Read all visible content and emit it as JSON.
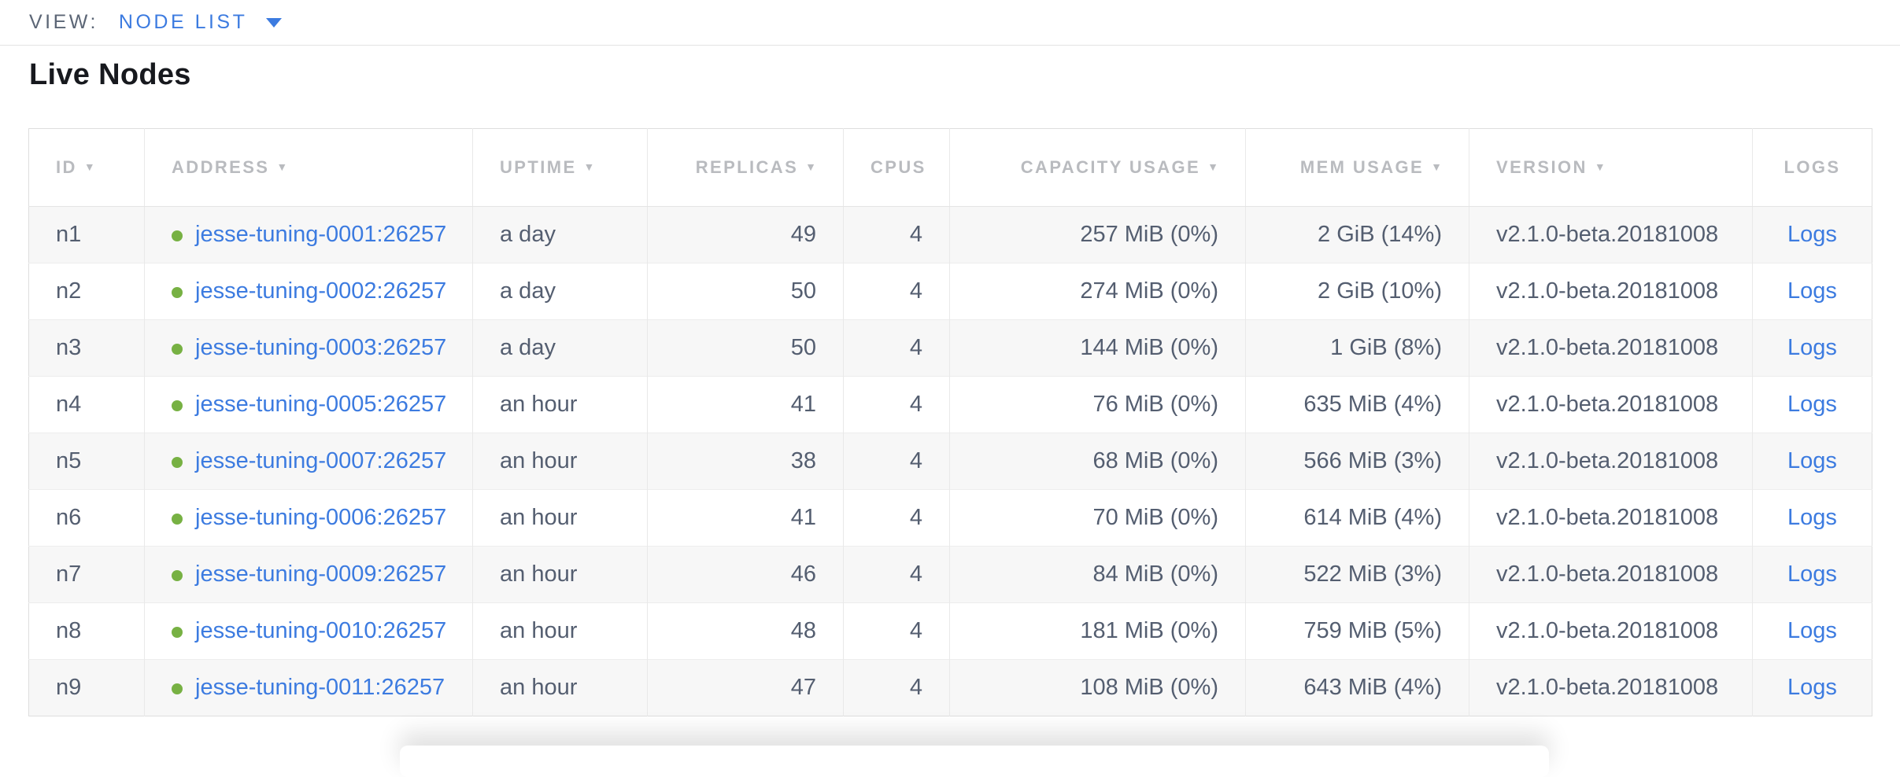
{
  "view_bar": {
    "label": "VIEW:",
    "selected": "NODE LIST"
  },
  "page": {
    "title": "Live Nodes"
  },
  "table": {
    "columns": [
      {
        "key": "id",
        "label": "ID",
        "sortable": true,
        "align": "left"
      },
      {
        "key": "address",
        "label": "ADDRESS",
        "sortable": true,
        "align": "left"
      },
      {
        "key": "uptime",
        "label": "UPTIME",
        "sortable": true,
        "align": "left"
      },
      {
        "key": "replicas",
        "label": "REPLICAS",
        "sortable": true,
        "align": "right"
      },
      {
        "key": "cpus",
        "label": "CPUS",
        "sortable": false,
        "align": "right"
      },
      {
        "key": "capacity",
        "label": "CAPACITY USAGE",
        "sortable": true,
        "align": "right"
      },
      {
        "key": "mem",
        "label": "MEM USAGE",
        "sortable": true,
        "align": "right"
      },
      {
        "key": "version",
        "label": "VERSION",
        "sortable": true,
        "align": "left"
      },
      {
        "key": "logs",
        "label": "LOGS",
        "sortable": false,
        "align": "center"
      }
    ],
    "rows": [
      {
        "id": "n1",
        "status": "live",
        "address": "jesse-tuning-0001:26257",
        "uptime": "a day",
        "replicas": "49",
        "cpus": "4",
        "capacity": "257 MiB (0%)",
        "mem": "2 GiB (14%)",
        "version": "v2.1.0-beta.20181008",
        "logs": "Logs"
      },
      {
        "id": "n2",
        "status": "live",
        "address": "jesse-tuning-0002:26257",
        "uptime": "a day",
        "replicas": "50",
        "cpus": "4",
        "capacity": "274 MiB (0%)",
        "mem": "2 GiB (10%)",
        "version": "v2.1.0-beta.20181008",
        "logs": "Logs"
      },
      {
        "id": "n3",
        "status": "live",
        "address": "jesse-tuning-0003:26257",
        "uptime": "a day",
        "replicas": "50",
        "cpus": "4",
        "capacity": "144 MiB (0%)",
        "mem": "1 GiB (8%)",
        "version": "v2.1.0-beta.20181008",
        "logs": "Logs"
      },
      {
        "id": "n4",
        "status": "live",
        "address": "jesse-tuning-0005:26257",
        "uptime": "an hour",
        "replicas": "41",
        "cpus": "4",
        "capacity": "76 MiB (0%)",
        "mem": "635 MiB (4%)",
        "version": "v2.1.0-beta.20181008",
        "logs": "Logs"
      },
      {
        "id": "n5",
        "status": "live",
        "address": "jesse-tuning-0007:26257",
        "uptime": "an hour",
        "replicas": "38",
        "cpus": "4",
        "capacity": "68 MiB (0%)",
        "mem": "566 MiB (3%)",
        "version": "v2.1.0-beta.20181008",
        "logs": "Logs"
      },
      {
        "id": "n6",
        "status": "live",
        "address": "jesse-tuning-0006:26257",
        "uptime": "an hour",
        "replicas": "41",
        "cpus": "4",
        "capacity": "70 MiB (0%)",
        "mem": "614 MiB (4%)",
        "version": "v2.1.0-beta.20181008",
        "logs": "Logs"
      },
      {
        "id": "n7",
        "status": "live",
        "address": "jesse-tuning-0009:26257",
        "uptime": "an hour",
        "replicas": "46",
        "cpus": "4",
        "capacity": "84 MiB (0%)",
        "mem": "522 MiB (3%)",
        "version": "v2.1.0-beta.20181008",
        "logs": "Logs"
      },
      {
        "id": "n8",
        "status": "live",
        "address": "jesse-tuning-0010:26257",
        "uptime": "an hour",
        "replicas": "48",
        "cpus": "4",
        "capacity": "181 MiB (0%)",
        "mem": "759 MiB (5%)",
        "version": "v2.1.0-beta.20181008",
        "logs": "Logs"
      },
      {
        "id": "n9",
        "status": "live",
        "address": "jesse-tuning-0011:26257",
        "uptime": "an hour",
        "replicas": "47",
        "cpus": "4",
        "capacity": "108 MiB (0%)",
        "mem": "643 MiB (4%)",
        "version": "v2.1.0-beta.20181008",
        "logs": "Logs"
      }
    ]
  },
  "icons": {
    "sort_desc": "▼",
    "live_status": "green-dot",
    "dropdown": "caret-down"
  },
  "colors": {
    "accent_blue": "#3c7be0",
    "live_dot_green": "#77b143",
    "header_text": "#b9bbbf",
    "cell_text": "#545e70",
    "row_stripe": "#f7f7f7"
  }
}
